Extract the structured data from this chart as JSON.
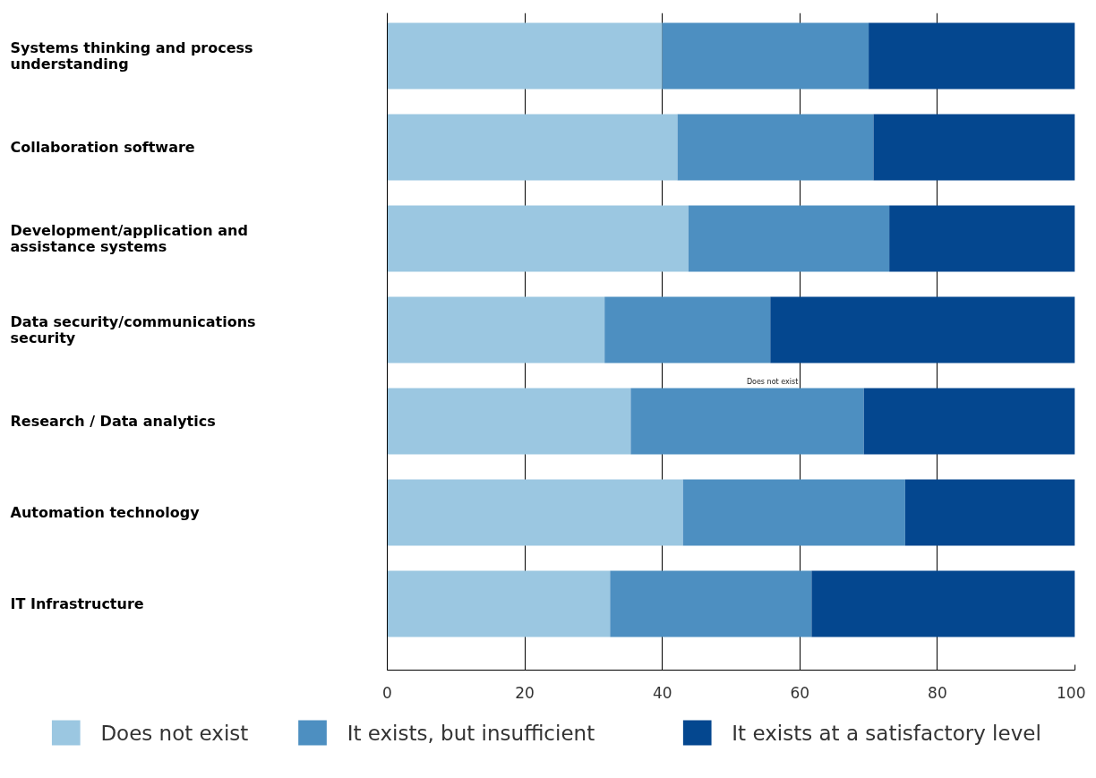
{
  "chart_data": {
    "type": "bar",
    "orientation": "horizontal",
    "stacked": true,
    "categories": [
      "Systems thinking and process understanding",
      "Collaboration software",
      "Development/application and assistance systems",
      "Data security/communications security",
      "Research / Data analytics",
      "Automation technology",
      "IT Infrastructure"
    ],
    "series": [
      {
        "name": "Does not exist",
        "color": "#9bc7e1",
        "values": [
          40.0,
          42.2,
          43.8,
          31.6,
          35.4,
          43.0,
          32.4
        ]
      },
      {
        "name": "It exists, but insufficient",
        "color": "#4d8fc1",
        "values": [
          30.0,
          28.5,
          29.2,
          24.1,
          33.9,
          32.3,
          29.3
        ]
      },
      {
        "name": "It exists at a satisfactory level",
        "color": "#04478f",
        "values": [
          30.0,
          29.3,
          27.0,
          44.3,
          30.7,
          24.7,
          38.3
        ]
      }
    ],
    "xlim": [
      0,
      100
    ],
    "xticks": [
      0,
      20,
      40,
      60,
      80,
      100
    ],
    "grid": "x",
    "legend": "bottom",
    "annotations": [
      "Does not exist"
    ]
  }
}
